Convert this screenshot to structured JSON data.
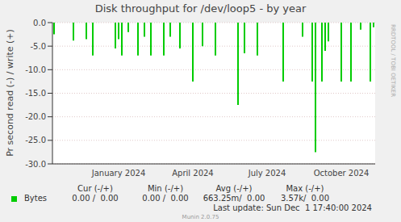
{
  "chart_data": {
    "type": "bar",
    "title": "Disk throughput for /dev/loop5 - by year",
    "y_label": "Pr second read (-) / write (+)",
    "categories": [
      null,
      null,
      null,
      null,
      null,
      null,
      null,
      null,
      null,
      null,
      null,
      null,
      null,
      null,
      null,
      null,
      null,
      null,
      null,
      null,
      "January 2024",
      null,
      null,
      null,
      null,
      null,
      null,
      null,
      null,
      null,
      null,
      null,
      null,
      null,
      null,
      null,
      null,
      null,
      null,
      null,
      null,
      null,
      null,
      "April 2024",
      null,
      null,
      null,
      null,
      null,
      null,
      null,
      null,
      null,
      null,
      null,
      null,
      null,
      null,
      null,
      null,
      null,
      null,
      null,
      null,
      null,
      null,
      "July 2024",
      null,
      null,
      null,
      null,
      null,
      null,
      null,
      null,
      null,
      null,
      null,
      null,
      null,
      null,
      null,
      null,
      null,
      null,
      null,
      null,
      null,
      null,
      "October 2024",
      null,
      null,
      null,
      null,
      null,
      null,
      null,
      null,
      null,
      null
    ],
    "series": [
      {
        "name": "Bytes",
        "color": "#00cc00",
        "values": [
          -2.5,
          0,
          0,
          0,
          0,
          0,
          -3.8,
          0,
          0,
          0,
          -3.5,
          0,
          -7,
          0,
          0,
          0,
          0,
          0,
          0,
          -5.5,
          -3.5,
          -7,
          0,
          -2,
          0,
          0,
          -7,
          0,
          -3,
          0,
          -7,
          0,
          0,
          0,
          -7,
          0,
          -3,
          0,
          0,
          -5.5,
          0,
          0,
          0,
          -12.5,
          0,
          0,
          -5,
          0,
          0,
          0,
          -7,
          0,
          0,
          0,
          0,
          0,
          0,
          -17.5,
          0,
          -6.5,
          0,
          0,
          0,
          -7,
          0,
          0,
          0,
          0,
          0,
          0,
          0,
          -12.5,
          0,
          0,
          0,
          0,
          0,
          -3,
          0,
          0,
          -12.5,
          -27.5,
          0,
          -12.5,
          -6,
          -4,
          0,
          0,
          0,
          -12.5,
          0,
          0,
          -12.5,
          0,
          0,
          -1.5,
          0,
          0,
          -12.5,
          -1
        ]
      }
    ],
    "ylim": [
      -30,
      0
    ],
    "yticks": [
      {
        "value": 0,
        "label": "0.0"
      },
      {
        "value": -5,
        "label": "-5.0"
      },
      {
        "value": -10,
        "label": "-10.0"
      },
      {
        "value": -15,
        "label": "-15.0"
      },
      {
        "value": -20,
        "label": "-20.0"
      },
      {
        "value": -25,
        "label": "-25.0"
      },
      {
        "value": -30,
        "label": "-30.0"
      }
    ],
    "grid": true,
    "legend_table": {
      "columns": [
        "Cur (-/+)",
        "Min (-/+)",
        "Avg (-/+)",
        "Max (-/+)"
      ],
      "cells": [
        "0.00 /  0.00",
        "0.00 /  0.00",
        "663.25m/  0.00",
        "3.57k/  0.00"
      ]
    },
    "annotations": [
      "Last update: Sun Dec  1 17:40:00 2024",
      "Munin 2.0.75",
      "RRDTOOL / TOBI OETIKER"
    ]
  }
}
